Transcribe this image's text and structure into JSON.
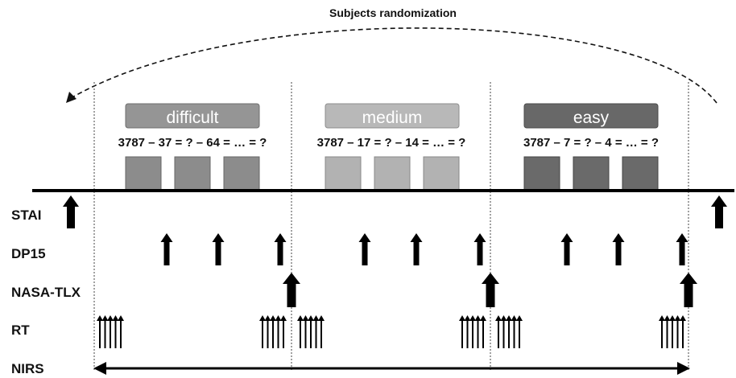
{
  "title": "Subjects randomization",
  "conditions": [
    {
      "label": "difficult",
      "equation": "3787 – 37 = ? – 64 = … = ?",
      "color": "#8c8c8c",
      "header_color": "#959595"
    },
    {
      "label": "medium",
      "equation": "3787 – 17 = ? – 14 = … = ?",
      "color": "#b2b2b2",
      "header_color": "#b8b8b8"
    },
    {
      "label": "easy",
      "equation": "3787 – 7 = ? – 4 = … = ?",
      "color": "#6a6a6a",
      "header_color": "#686868"
    }
  ],
  "rows": [
    {
      "key": "stai",
      "label": "STAI"
    },
    {
      "key": "dp15",
      "label": "DP15"
    },
    {
      "key": "nasa",
      "label": "NASA-TLX"
    },
    {
      "key": "rt",
      "label": "RT"
    },
    {
      "key": "nirs",
      "label": "NIRS"
    }
  ]
}
